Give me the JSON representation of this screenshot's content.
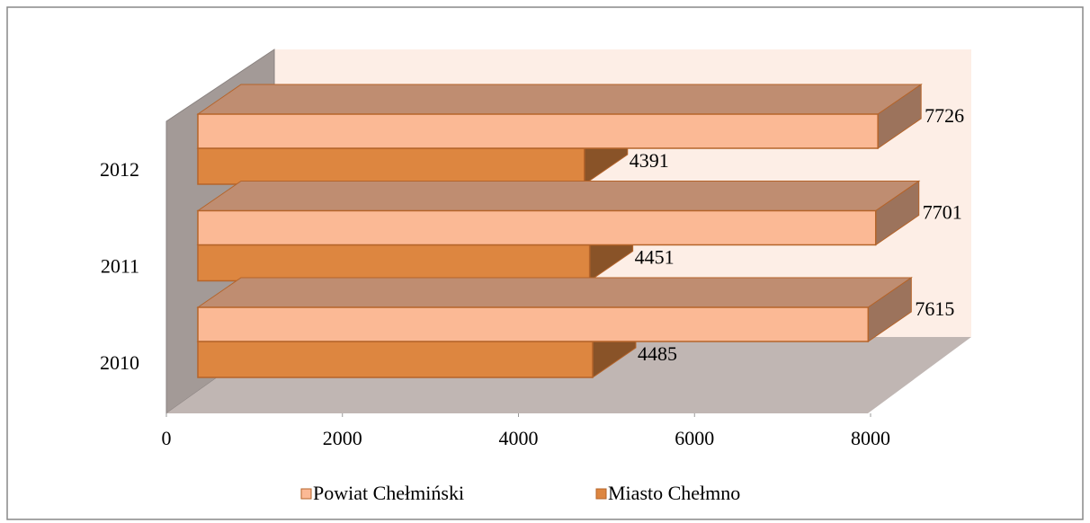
{
  "chart_data": {
    "type": "bar3d_horizontal",
    "categories": [
      "2010",
      "2011",
      "2012"
    ],
    "series": [
      {
        "name": "Powiat Chełmiński",
        "color": "#fbb995",
        "values": [
          7615,
          7701,
          7726
        ]
      },
      {
        "name": "Miasto Chełmno",
        "color": "#dd8640",
        "values": [
          4485,
          4451,
          4391
        ]
      }
    ],
    "xlim": [
      0,
      8000
    ],
    "xticks": [
      0,
      2000,
      4000,
      6000,
      8000
    ],
    "legend": "bottom"
  }
}
